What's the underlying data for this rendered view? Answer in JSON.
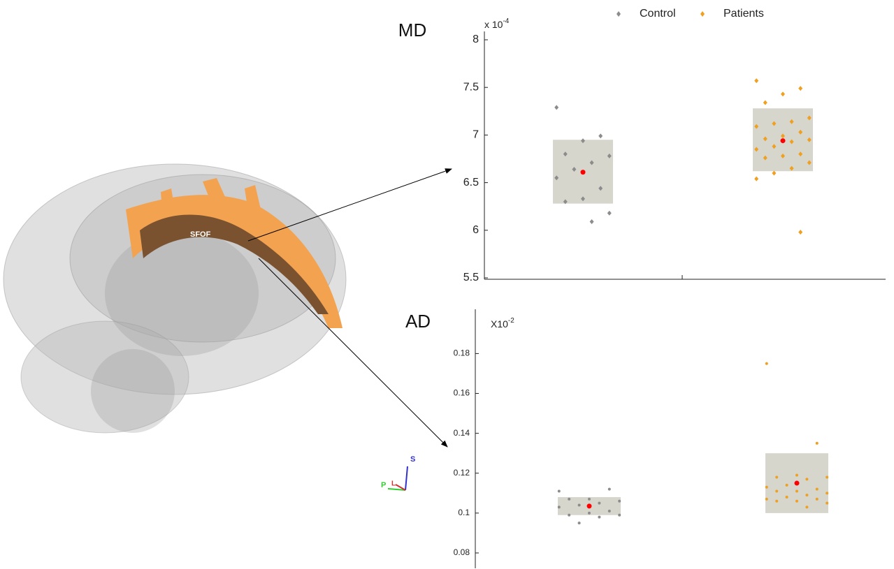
{
  "brain": {
    "tract_label": "SFOF",
    "orientation": {
      "superior": "S",
      "posterior": "P",
      "left": "L"
    }
  },
  "chart_data": [
    {
      "type": "box_scatter",
      "title": "MD",
      "scale_base": "x 10",
      "scale_exponent": "-4",
      "ylim": [
        5.5,
        8
      ],
      "yticks": [
        5.5,
        6,
        6.5,
        7,
        7.5,
        8
      ],
      "mean_color": "#ff0000",
      "box_color": "#d6d6cc",
      "series": [
        {
          "name": "Control",
          "color": "#8c8c8c",
          "values": [
            7.29,
            6.99,
            6.94,
            6.8,
            6.78,
            6.71,
            6.64,
            6.55,
            6.44,
            6.33,
            6.3,
            6.18,
            6.09
          ],
          "mean": 6.61,
          "box": [
            6.28,
            6.95
          ]
        },
        {
          "name": "Patients",
          "color": "#f0a020",
          "values": [
            7.57,
            7.49,
            7.43,
            7.34,
            7.18,
            7.14,
            7.12,
            7.09,
            7.03,
            6.99,
            6.96,
            6.95,
            6.93,
            6.88,
            6.85,
            6.8,
            6.78,
            6.76,
            6.71,
            6.65,
            6.6,
            6.54,
            5.98
          ],
          "mean": 6.94,
          "box": [
            6.62,
            7.28
          ]
        }
      ]
    },
    {
      "type": "box_scatter",
      "title": "AD",
      "scale_base": "X10",
      "scale_exponent": "-2",
      "ylim": [
        0.073,
        0.198
      ],
      "yticks": [
        0.08,
        0.1,
        0.12,
        0.14,
        0.16,
        0.18
      ],
      "mean_color": "#ff0000",
      "box_color": "#d6d6cc",
      "series": [
        {
          "name": "Control",
          "color": "#8c8c8c",
          "values": [
            0.111,
            0.112,
            0.107,
            0.107,
            0.106,
            0.105,
            0.104,
            0.103,
            0.101,
            0.1,
            0.099,
            0.099,
            0.098,
            0.095
          ],
          "mean": 0.1035,
          "box": [
            0.099,
            0.108
          ]
        },
        {
          "name": "Patients",
          "color": "#f0a020",
          "values": [
            0.175,
            0.135,
            0.119,
            0.118,
            0.118,
            0.117,
            0.114,
            0.113,
            0.112,
            0.111,
            0.111,
            0.11,
            0.109,
            0.108,
            0.107,
            0.107,
            0.106,
            0.106,
            0.105,
            0.103
          ],
          "mean": 0.115,
          "box": [
            0.1,
            0.13
          ]
        }
      ]
    }
  ]
}
